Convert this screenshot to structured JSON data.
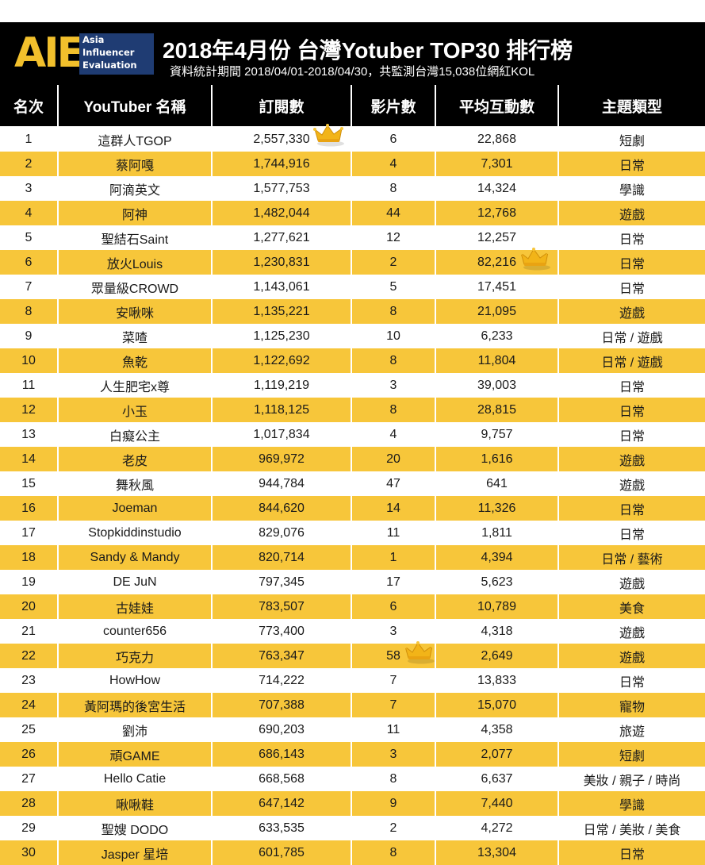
{
  "header": {
    "logo_letters": "AIE",
    "logo_line1": "Asia",
    "logo_line2": "Influencer",
    "logo_line3": "Evaluation",
    "title": "2018年4月份 台灣Yotuber TOP30 排行榜",
    "subtitle": "資料統計期間 2018/04/01-2018/04/30，共監測台灣15,038位網紅KOL",
    "bg_color": "#000000",
    "accent_color": "#f7c63a",
    "logo_blue": "#1f3c73"
  },
  "chart_data": {
    "type": "table",
    "columns": [
      "名次",
      "YouTuber 名稱",
      "訂閱數",
      "影片數",
      "平均互動數",
      "主題類型"
    ],
    "rows": [
      [
        "1",
        "這群人TGOP",
        "2,557,330",
        "6",
        "22,868",
        "短劇"
      ],
      [
        "2",
        "蔡阿嘎",
        "1,744,916",
        "4",
        "7,301",
        "日常"
      ],
      [
        "3",
        "阿滴英文",
        "1,577,753",
        "8",
        "14,324",
        "學識"
      ],
      [
        "4",
        "阿神",
        "1,482,044",
        "44",
        "12,768",
        "遊戲"
      ],
      [
        "5",
        "聖結石Saint",
        "1,277,621",
        "12",
        "12,257",
        "日常"
      ],
      [
        "6",
        "放火Louis",
        "1,230,831",
        "2",
        "82,216",
        "日常"
      ],
      [
        "7",
        "眾量級CROWD",
        "1,143,061",
        "5",
        "17,451",
        "日常"
      ],
      [
        "8",
        "安啾咪",
        "1,135,221",
        "8",
        "21,095",
        "遊戲"
      ],
      [
        "9",
        "菜喳",
        "1,125,230",
        "10",
        "6,233",
        "日常 / 遊戲"
      ],
      [
        "10",
        "魚乾",
        "1,122,692",
        "8",
        "11,804",
        "日常 / 遊戲"
      ],
      [
        "11",
        "人生肥宅x尊",
        "1,119,219",
        "3",
        "39,003",
        "日常"
      ],
      [
        "12",
        "小玉",
        "1,118,125",
        "8",
        "28,815",
        "日常"
      ],
      [
        "13",
        "白癡公主",
        "1,017,834",
        "4",
        "9,757",
        "日常"
      ],
      [
        "14",
        "老皮",
        "969,972",
        "20",
        "1,616",
        "遊戲"
      ],
      [
        "15",
        "舞秋風",
        "944,784",
        "47",
        "641",
        "遊戲"
      ],
      [
        "16",
        "Joeman",
        "844,620",
        "14",
        "11,326",
        "日常"
      ],
      [
        "17",
        "Stopkiddinstudio",
        "829,076",
        "11",
        "1,811",
        "日常"
      ],
      [
        "18",
        "Sandy & Mandy",
        "820,714",
        "1",
        "4,394",
        "日常 / 藝術"
      ],
      [
        "19",
        "DE JuN",
        "797,345",
        "17",
        "5,623",
        "遊戲"
      ],
      [
        "20",
        "古娃娃",
        "783,507",
        "6",
        "10,789",
        "美食"
      ],
      [
        "21",
        "counter656",
        "773,400",
        "3",
        "4,318",
        "遊戲"
      ],
      [
        "22",
        "巧克力",
        "763,347",
        "58",
        "2,649",
        "遊戲"
      ],
      [
        "23",
        "HowHow",
        "714,222",
        "7",
        "13,833",
        "日常"
      ],
      [
        "24",
        "黃阿瑪的後宮生活",
        "707,388",
        "7",
        "15,070",
        "寵物"
      ],
      [
        "25",
        "劉沛",
        "690,203",
        "11",
        "4,358",
        "旅遊"
      ],
      [
        "26",
        "頑GAME",
        "686,143",
        "3",
        "2,077",
        "短劇"
      ],
      [
        "27",
        "Hello Catie",
        "668,568",
        "8",
        "6,637",
        "美妝 / 親子 / 時尚"
      ],
      [
        "28",
        "啾啾鞋",
        "647,142",
        "9",
        "7,440",
        "學識"
      ],
      [
        "29",
        "聖嫂 DODO",
        "633,535",
        "2",
        "4,272",
        "日常 / 美妝 / 美食"
      ],
      [
        "30",
        "Jasper 星培",
        "601,785",
        "8",
        "13,304",
        "日常"
      ]
    ],
    "crowns": [
      {
        "row": 1,
        "column": "訂閱數"
      },
      {
        "row": 6,
        "column": "平均互動數"
      },
      {
        "row": 22,
        "column": "影片數"
      }
    ]
  }
}
